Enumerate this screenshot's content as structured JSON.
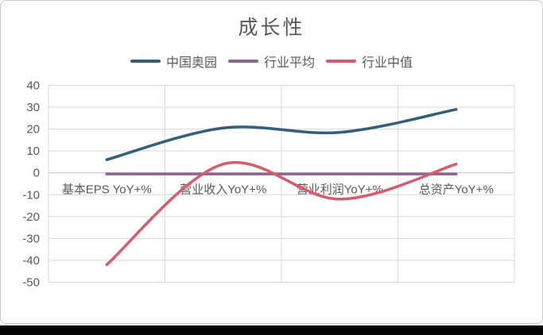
{
  "chart_data": {
    "type": "line",
    "title": "成长性",
    "xlabel": "",
    "ylabel": "",
    "categories": [
      "基本EPS YoY+%",
      "营业收入YoY+%",
      "营业利润YoY+%",
      "总资产YoY+%"
    ],
    "series": [
      {
        "name": "中国奥园",
        "color": "#335F7E",
        "values": [
          6,
          20.5,
          18.5,
          29
        ]
      },
      {
        "name": "行业平均",
        "color": "#8E6392",
        "values": [
          -0.5,
          -0.5,
          -0.5,
          -0.5
        ]
      },
      {
        "name": "行业中值",
        "color": "#D85A6C",
        "values": [
          -42,
          4,
          -12,
          4
        ]
      }
    ],
    "y_ticks": [
      40,
      30,
      20,
      10,
      0,
      "-10",
      "-20",
      "-30",
      "-40",
      "-50"
    ],
    "ylim": [
      -50,
      40
    ],
    "smooth": true,
    "grid": true,
    "legend_position": "top",
    "gridline_color": "#D8D8D8",
    "zero_axis_color": "#BFBFBF",
    "axis_label_color": "#595959",
    "title_color": "#595959"
  }
}
